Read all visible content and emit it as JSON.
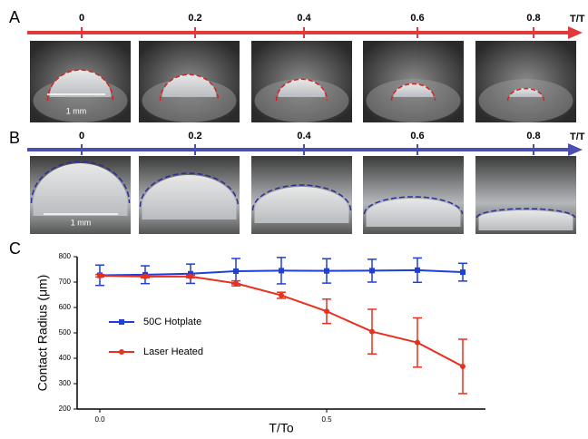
{
  "panel_labels": [
    "A",
    "B",
    "C"
  ],
  "timeline_a": {
    "ticks": [
      "0",
      "0.2",
      "0.4",
      "0.6",
      "0.8"
    ],
    "axis_label": "T/T"
  },
  "timeline_b": {
    "ticks": [
      "0",
      "0.2",
      "0.4",
      "0.6",
      "0.8"
    ],
    "axis_label": "T/T"
  },
  "scale_bar": "1 mm",
  "chart_data": {
    "type": "line",
    "xlabel": "T/To",
    "ylabel": "Contact Radius (μm)",
    "x": [
      0,
      0.1,
      0.2,
      0.3,
      0.4,
      0.5,
      0.6,
      0.7,
      0.8
    ],
    "series": [
      {
        "name": "50C Hotplate",
        "color": "#1f3fd6",
        "values": [
          727,
          729,
          733,
          743,
          745,
          744,
          745,
          747,
          739
        ],
        "errors": [
          40,
          35,
          38,
          50,
          52,
          48,
          45,
          48,
          35
        ]
      },
      {
        "name": "Laser Heated",
        "color": "#e8301e",
        "values": [
          725,
          722,
          722,
          695,
          648,
          585,
          505,
          462,
          368
        ],
        "errors": [
          5,
          5,
          5,
          10,
          12,
          48,
          88,
          97,
          107
        ]
      }
    ],
    "xlim": [
      -0.05,
      0.85
    ],
    "ylim": [
      200,
      800
    ],
    "xticks": [
      {
        "value": 0,
        "label": "0.0"
      },
      {
        "value": 0.5,
        "label": "0.5"
      }
    ],
    "yticks": [
      200,
      300,
      400,
      500,
      600,
      700,
      800
    ]
  }
}
